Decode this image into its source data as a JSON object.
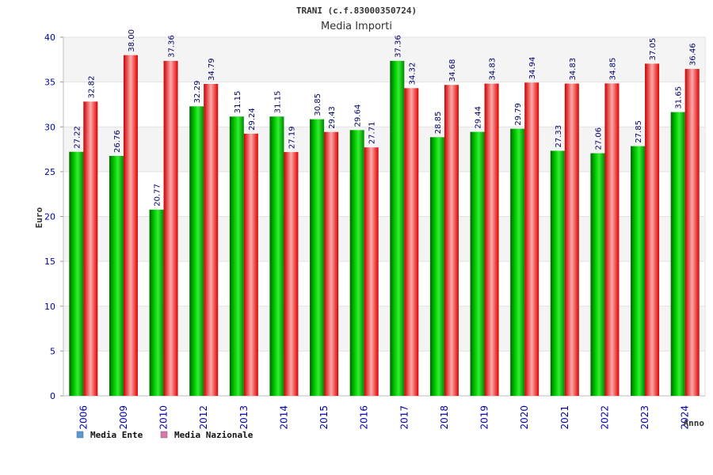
{
  "chart_data": {
    "type": "bar",
    "title": "TRANI (c.f.83000350724)",
    "subtitle": "Media Importi",
    "ylabel": "Euro",
    "xlabel": "Anno",
    "ylim": [
      0,
      40
    ],
    "yticks": [
      0,
      5,
      10,
      15,
      20,
      25,
      30,
      35,
      40
    ],
    "grid": true,
    "legend_position": "bottom-left",
    "categories": [
      "2006",
      "2009",
      "2010",
      "2012",
      "2013",
      "2014",
      "2015",
      "2016",
      "2017",
      "2018",
      "2019",
      "2020",
      "2021",
      "2022",
      "2023",
      "2024"
    ],
    "series": [
      {
        "name": "Media Ente",
        "color": "#00aa00",
        "legend_color": "#5599dd",
        "values": [
          27.22,
          26.76,
          20.77,
          32.29,
          31.15,
          31.15,
          30.85,
          29.64,
          37.36,
          28.85,
          29.44,
          29.79,
          27.33,
          27.06,
          27.85,
          31.65
        ],
        "labels": [
          "27.22",
          "26.76",
          "20.77",
          "32.29",
          "31.15",
          "31.15",
          "30.85",
          "29.64",
          "37.36",
          "28.85",
          "29.44",
          "29.79",
          "27.33",
          "27.06",
          "27.85",
          "31.65"
        ]
      },
      {
        "name": "Media Nazionale",
        "color": "#ee1111",
        "legend_color": "#dd77aa",
        "values": [
          32.82,
          38.0,
          37.36,
          34.79,
          29.24,
          27.19,
          29.43,
          27.71,
          34.32,
          34.68,
          34.83,
          34.94,
          34.83,
          34.85,
          37.05,
          36.46
        ],
        "labels": [
          "32.82",
          "38.00",
          "37.36",
          "34.79",
          "29.24",
          "27.19",
          "29.43",
          "27.71",
          "34.32",
          "34.68",
          "34.83",
          "34.94",
          "34.83",
          "34.85",
          "37.05",
          "36.46"
        ]
      }
    ]
  }
}
